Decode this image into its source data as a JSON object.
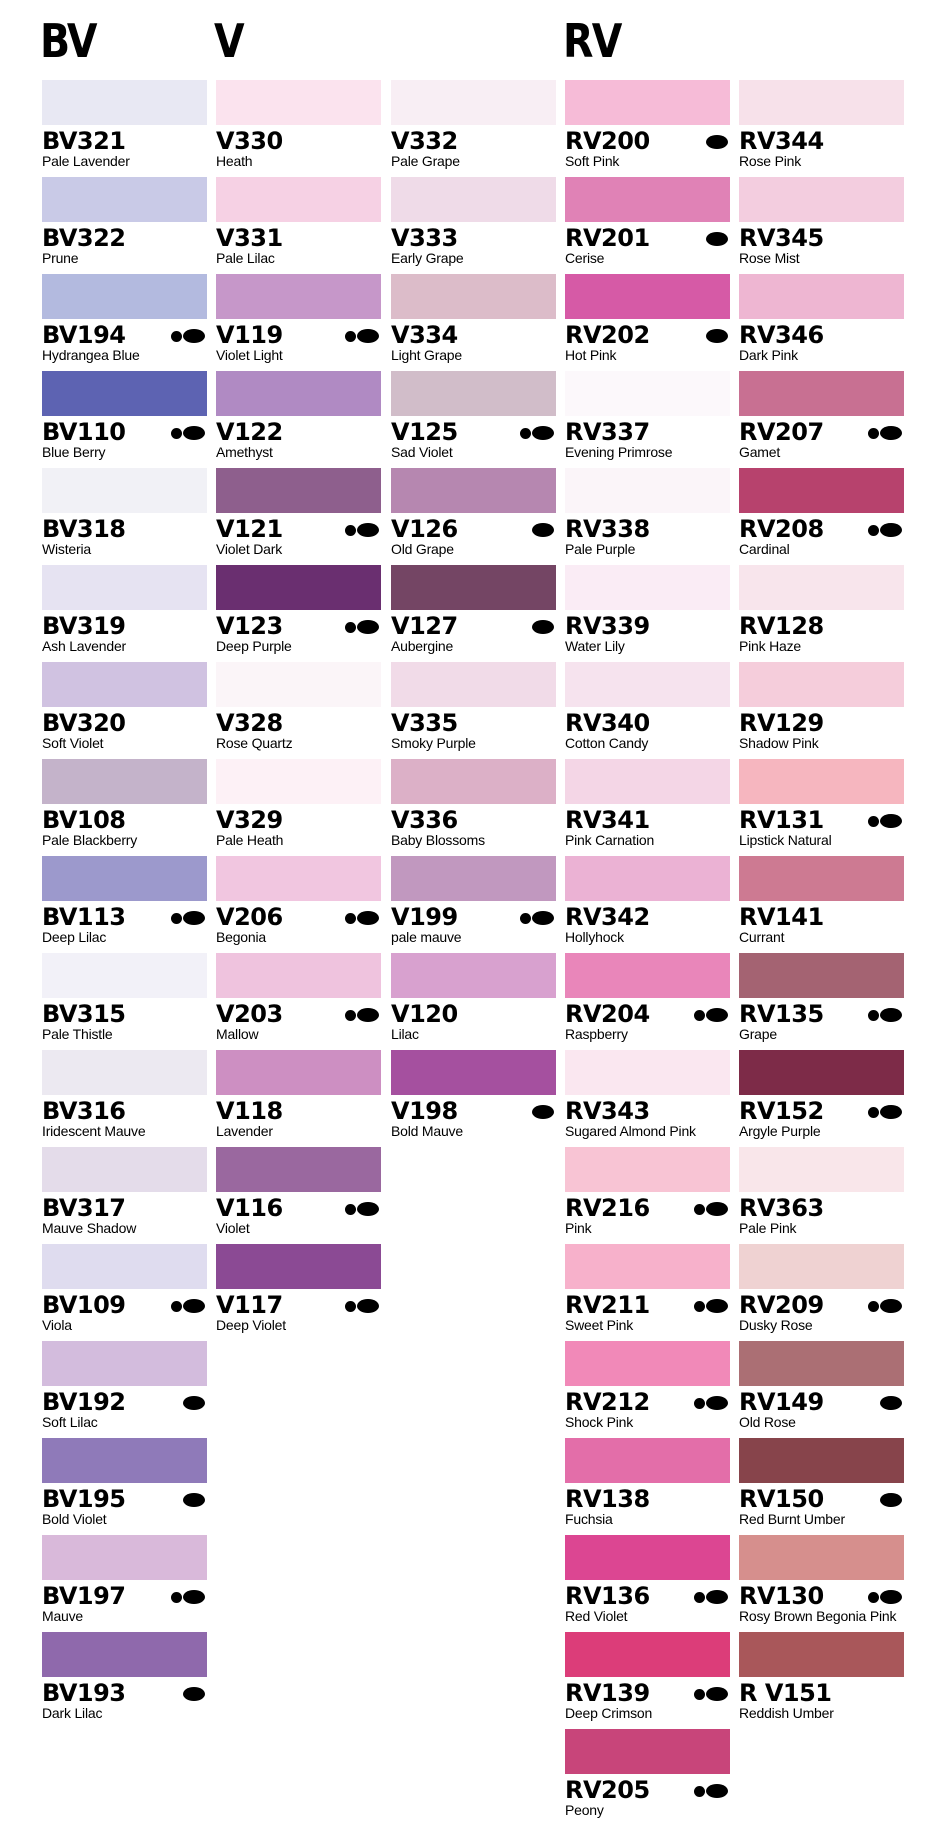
{
  "groups": [
    {
      "key": "bv",
      "title": "BV"
    },
    {
      "key": "v",
      "title": "V"
    },
    {
      "key": "rv",
      "title": "RV"
    }
  ],
  "columns": [
    {
      "key": "bv",
      "items": [
        {
          "code": "BV321",
          "name": "Pale Lavender",
          "color": "#e8e8f3",
          "tips": 0
        },
        {
          "code": "BV322",
          "name": "Prune",
          "color": "#c9cae7",
          "tips": 0
        },
        {
          "code": "BV194",
          "name": "Hydrangea Blue",
          "color": "#b3badf",
          "tips": 2
        },
        {
          "code": "BV110",
          "name": "Blue Berry",
          "color": "#5d63b2",
          "tips": 2
        },
        {
          "code": "BV318",
          "name": "Wisteria",
          "color": "#f1f1f6",
          "tips": 0
        },
        {
          "code": "BV319",
          "name": "Ash Lavender",
          "color": "#e6e3f2",
          "tips": 0
        },
        {
          "code": "BV320",
          "name": "Soft Violet",
          "color": "#d0c2e1",
          "tips": 0
        },
        {
          "code": "BV108",
          "name": "Pale Blackberry",
          "color": "#c4b3ca",
          "tips": 0
        },
        {
          "code": "BV113",
          "name": "Deep Lilac",
          "color": "#9c99cc",
          "tips": 2
        },
        {
          "code": "BV315",
          "name": "Pale Thistle",
          "color": "#f2f1f8",
          "tips": 0
        },
        {
          "code": "BV316",
          "name": "Iridescent Mauve",
          "color": "#ece9f1",
          "tips": 0
        },
        {
          "code": "BV317",
          "name": "Mauve Shadow",
          "color": "#e4dcea",
          "tips": 0
        },
        {
          "code": "BV109",
          "name": "Viola",
          "color": "#dfdcef",
          "tips": 2
        },
        {
          "code": "BV192",
          "name": "Soft Lilac",
          "color": "#d3bcdd",
          "tips": 1
        },
        {
          "code": "BV195",
          "name": "Bold Violet",
          "color": "#8f7ab9",
          "tips": 1
        },
        {
          "code": "BV197",
          "name": "Mauve",
          "color": "#d9b9da",
          "tips": 2
        },
        {
          "code": "BV193",
          "name": "Dark Lilac",
          "color": "#8f69ac",
          "tips": 1
        }
      ]
    },
    {
      "key": "v1",
      "items": [
        {
          "code": "V330",
          "name": "Heath",
          "color": "#fbe3ee",
          "tips": 0
        },
        {
          "code": "V331",
          "name": "Pale Lilac",
          "color": "#f6d1e4",
          "tips": 0
        },
        {
          "code": "V119",
          "name": "Violet Light",
          "color": "#c697c9",
          "tips": 2
        },
        {
          "code": "V122",
          "name": "Amethyst",
          "color": "#b08ac3",
          "tips": 0
        },
        {
          "code": "V121",
          "name": "Violet Dark",
          "color": "#8e5f8d",
          "tips": 2
        },
        {
          "code": "V123",
          "name": "Deep Purple",
          "color": "#6a2f70",
          "tips": 2
        },
        {
          "code": "V328",
          "name": "Rose Quartz",
          "color": "#fbf5f8",
          "tips": 0
        },
        {
          "code": "V329",
          "name": "Pale Heath",
          "color": "#fdf1f6",
          "tips": 0
        },
        {
          "code": "V206",
          "name": "Begonia",
          "color": "#f1c6e0",
          "tips": 2
        },
        {
          "code": "V203",
          "name": "Mallow",
          "color": "#efc3de",
          "tips": 2
        },
        {
          "code": "V118",
          "name": "Lavender",
          "color": "#cd8fc2",
          "tips": 0
        },
        {
          "code": "V116",
          "name": "Violet",
          "color": "#9a689f",
          "tips": 2
        },
        {
          "code": "V117",
          "name": "Deep Violet",
          "color": "#8b4a94",
          "tips": 2
        }
      ]
    },
    {
      "key": "v2",
      "items": [
        {
          "code": "V332",
          "name": "Pale Grape",
          "color": "#f8eef4",
          "tips": 0
        },
        {
          "code": "V333",
          "name": "Early Grape",
          "color": "#efdbe8",
          "tips": 0
        },
        {
          "code": "V334",
          "name": "Light Grape",
          "color": "#dcbcc9",
          "tips": 0
        },
        {
          "code": "V125",
          "name": "Sad Violet",
          "color": "#d1bdc9",
          "tips": 2
        },
        {
          "code": "V126",
          "name": "Old Grape",
          "color": "#b687b0",
          "tips": 1
        },
        {
          "code": "V127",
          "name": "Aubergine",
          "color": "#744564",
          "tips": 1
        },
        {
          "code": "V335",
          "name": "Smoky Purple",
          "color": "#f1dbe8",
          "tips": 0
        },
        {
          "code": "V336",
          "name": "Baby Blossoms",
          "color": "#dcb0c7",
          "tips": 0
        },
        {
          "code": "V199",
          "name": "pale mauve",
          "color": "#c198bf",
          "tips": 2
        },
        {
          "code": "V120",
          "name": "Lilac",
          "color": "#d8a1cf",
          "tips": 0
        },
        {
          "code": "V198",
          "name": "Bold Mauve",
          "color": "#a5509f",
          "tips": 1
        }
      ]
    },
    {
      "key": "rv1",
      "items": [
        {
          "code": "RV200",
          "name": "Soft Pink",
          "color": "#f6bbd7",
          "tips": 1
        },
        {
          "code": "RV201",
          "name": "Cerise",
          "color": "#e082b6",
          "tips": 1
        },
        {
          "code": "RV202",
          "name": "Hot Pink",
          "color": "#d65aa6",
          "tips": 1
        },
        {
          "code": "RV337",
          "name": "Evening Primrose",
          "color": "#fcf8fb",
          "tips": 0
        },
        {
          "code": "RV338",
          "name": "Pale Purple",
          "color": "#fbf5f9",
          "tips": 0
        },
        {
          "code": "RV339",
          "name": "Water Lily",
          "color": "#faecf5",
          "tips": 0
        },
        {
          "code": "RV340",
          "name": "Cotton Candy",
          "color": "#f6e3ee",
          "tips": 0
        },
        {
          "code": "RV341",
          "name": "Pink Carnation",
          "color": "#f4d6e6",
          "tips": 0
        },
        {
          "code": "RV342",
          "name": "Hollyhock",
          "color": "#ebb2d4",
          "tips": 0
        },
        {
          "code": "RV204",
          "name": "Raspberry",
          "color": "#e986ba",
          "tips": 2
        },
        {
          "code": "RV343",
          "name": "Sugared Almond Pink",
          "color": "#fae7f0",
          "tips": 0
        },
        {
          "code": "RV216",
          "name": "Pink",
          "color": "#f8c4d4",
          "tips": 2
        },
        {
          "code": "RV211",
          "name": "Sweet Pink",
          "color": "#f7b1cb",
          "tips": 2
        },
        {
          "code": "RV212",
          "name": "Shock Pink",
          "color": "#f189b8",
          "tips": 2
        },
        {
          "code": "RV138",
          "name": "Fuchsia",
          "color": "#e36ea9",
          "tips": 0
        },
        {
          "code": "RV136",
          "name": "Red Violet",
          "color": "#dc4692",
          "tips": 2
        },
        {
          "code": "RV139",
          "name": "Deep Crimson",
          "color": "#dc3d79",
          "tips": 2
        },
        {
          "code": "RV205",
          "name": "Peony",
          "color": "#c8457a",
          "tips": 2
        }
      ]
    },
    {
      "key": "rv2",
      "items": [
        {
          "code": "RV344",
          "name": "Rose Pink",
          "color": "#f7e1ea",
          "tips": 0
        },
        {
          "code": "RV345",
          "name": "Rose Mist",
          "color": "#f3cddf",
          "tips": 0
        },
        {
          "code": "RV346",
          "name": "Dark Pink",
          "color": "#eeb6d2",
          "tips": 0
        },
        {
          "code": "RV207",
          "name": "Gamet",
          "color": "#c87092",
          "tips": 2
        },
        {
          "code": "RV208",
          "name": "Cardinal",
          "color": "#b7426d",
          "tips": 2
        },
        {
          "code": "RV128",
          "name": "Pink Haze",
          "color": "#f8e5ec",
          "tips": 0
        },
        {
          "code": "RV129",
          "name": "Shadow Pink",
          "color": "#f5cddb",
          "tips": 0
        },
        {
          "code": "RV131",
          "name": "Lipstick Natural",
          "color": "#f6b6bf",
          "tips": 2
        },
        {
          "code": "RV141",
          "name": "Currant",
          "color": "#cd7a92",
          "tips": 0
        },
        {
          "code": "RV135",
          "name": "Grape",
          "color": "#a46372",
          "tips": 2
        },
        {
          "code": "RV152",
          "name": "Argyle Purple",
          "color": "#7d2b48",
          "tips": 2
        },
        {
          "code": "RV363",
          "name": "Pale Pink",
          "color": "#f9e6ea",
          "tips": 0
        },
        {
          "code": "RV209",
          "name": "Dusky Rose",
          "color": "#efd2d2",
          "tips": 2
        },
        {
          "code": "RV149",
          "name": "Old Rose",
          "color": "#ab6f74",
          "tips": 1
        },
        {
          "code": "RV150",
          "name": "Red Burnt Umber",
          "color": "#87444b",
          "tips": 1
        },
        {
          "code": "RV130",
          "name": "Rosy Brown Begonia Pink",
          "color": "#d68f8d",
          "tips": 2
        },
        {
          "code": "R V151",
          "name": "Reddish Umber",
          "color": "#a9575a",
          "tips": 0
        }
      ]
    }
  ]
}
